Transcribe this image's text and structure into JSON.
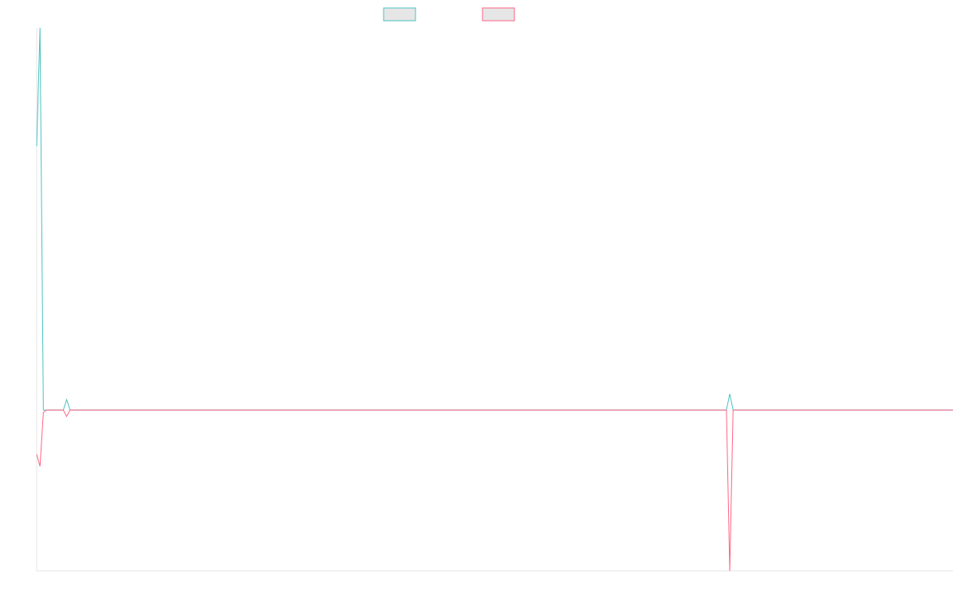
{
  "chart_data": {
    "type": "line",
    "xlim": [
      0,
      275
    ],
    "ylim": [
      -2,
      4.75
    ],
    "series": [
      {
        "color": "#4bc0c0",
        "x": [
          0,
          1,
          2,
          3,
          8,
          9,
          10,
          207,
          208,
          209,
          275
        ],
        "values": [
          3.28,
          4.75,
          0,
          0,
          0,
          0.13,
          0,
          0,
          0.2,
          0,
          0
        ]
      },
      {
        "color": "#ff6384",
        "x": [
          0,
          1,
          2,
          3,
          8,
          9,
          10,
          207,
          208,
          209,
          275
        ],
        "values": [
          -0.55,
          -0.7,
          -0.03,
          0,
          0,
          -0.08,
          0,
          0,
          -2,
          0,
          0
        ]
      }
    ]
  }
}
